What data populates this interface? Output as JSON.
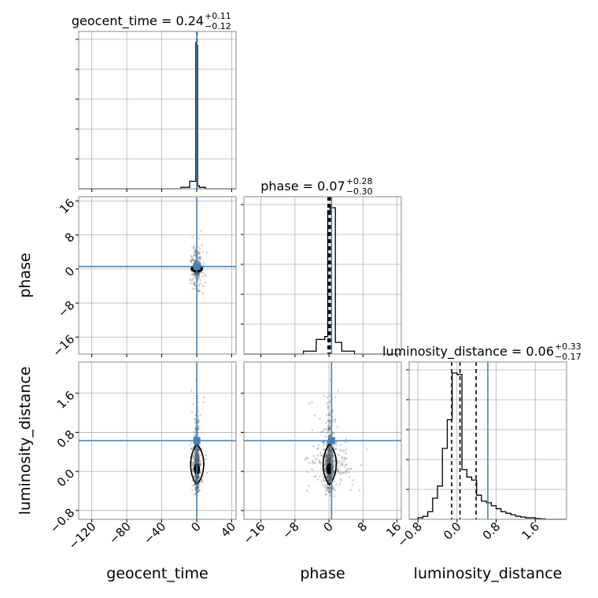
{
  "chart_data": {
    "type": "corner",
    "parameters": [
      "geocent_time",
      "phase",
      "luminosity_distance"
    ],
    "truths": {
      "geocent_time": 0.1,
      "phase": 0.6,
      "luminosity_distance": 0.63
    },
    "titles": [
      {
        "name": "geocent_time",
        "median": "0.24",
        "plus": "+0.11",
        "minus": "−0.12"
      },
      {
        "name": "phase",
        "median": "0.07",
        "plus": "+0.28",
        "minus": "−0.30"
      },
      {
        "name": "luminosity_distance",
        "median": "0.06",
        "plus": "+0.33",
        "minus": "−0.17"
      }
    ],
    "axes": {
      "geocent_time": {
        "range": [
          -135,
          45
        ],
        "ticks": [
          -120,
          -80,
          -40,
          0,
          40
        ],
        "tick_labels": [
          "−120",
          "−80",
          "−40",
          "0",
          "40"
        ]
      },
      "phase": {
        "range": [
          -20,
          17
        ],
        "ticks": [
          -16,
          -8,
          0,
          8,
          16
        ],
        "tick_labels": [
          "−16",
          "−8",
          "0",
          "8",
          "16"
        ]
      },
      "luminosity_distance": {
        "range": [
          -0.98,
          2.24
        ],
        "ticks": [
          -0.8,
          0.0,
          0.8,
          1.6
        ],
        "tick_labels": [
          "−0.8",
          "0.0",
          "0.8",
          "1.6"
        ]
      }
    },
    "histograms": {
      "geocent_time": {
        "edges": [
          -135,
          -18,
          -8,
          -1,
          0,
          1,
          3,
          10,
          45
        ],
        "counts": [
          0,
          0.01,
          0.05,
          0.97,
          0.95,
          0.02,
          0.01,
          0
        ],
        "quantiles": [
          0.12,
          0.24,
          0.35
        ]
      },
      "phase": {
        "edges": [
          -20,
          -6,
          -3,
          -1,
          -0.3,
          0.3,
          1.5,
          3,
          6,
          17
        ],
        "counts": [
          0,
          0.02,
          0.1,
          0.12,
          0.98,
          1.0,
          0.08,
          0.02,
          0
        ],
        "quantiles": [
          -0.23,
          0.07,
          0.35
        ]
      },
      "luminosity_distance": {
        "edges": [
          -0.98,
          -0.8,
          -0.7,
          -0.6,
          -0.5,
          -0.4,
          -0.3,
          -0.2,
          -0.1,
          0.0,
          0.1,
          0.2,
          0.3,
          0.4,
          0.5,
          0.6,
          0.7,
          0.8,
          0.9,
          1.0,
          1.1,
          1.2,
          1.3,
          1.4,
          1.5,
          1.6,
          1.7,
          1.8,
          2.24
        ],
        "counts": [
          0,
          0.01,
          0.02,
          0.05,
          0.14,
          0.22,
          0.47,
          0.66,
          0.97,
          0.96,
          0.33,
          0.28,
          0.26,
          0.16,
          0.12,
          0.11,
          0.09,
          0.07,
          0.05,
          0.04,
          0.03,
          0.02,
          0.015,
          0.01,
          0.01,
          0.005,
          0.003,
          0
        ],
        "quantiles": [
          -0.11,
          0.06,
          0.39
        ]
      }
    },
    "y_tick_count_diag": 5
  }
}
